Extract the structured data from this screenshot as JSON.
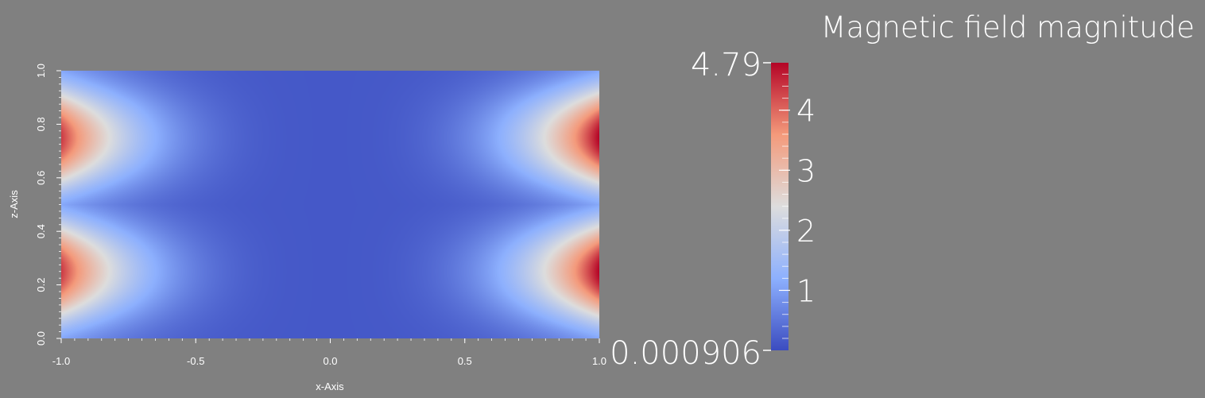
{
  "chart_data": {
    "type": "heatmap",
    "title": "",
    "xlabel": "x-Axis",
    "ylabel": "z-Axis",
    "xlim": [
      -1.0,
      1.0
    ],
    "ylim": [
      0.0,
      1.0
    ],
    "x_ticks": [
      "-1.0",
      "-0.5",
      "0.0",
      "0.5",
      "1.0"
    ],
    "x_tick_values": [
      -1.0,
      -0.5,
      0.0,
      0.5,
      1.0
    ],
    "y_ticks": [
      "0.0",
      "0.2",
      "0.4",
      "0.6",
      "0.8",
      "1.0"
    ],
    "y_tick_values": [
      0.0,
      0.2,
      0.4,
      0.6,
      0.8,
      1.0
    ],
    "colorbar": {
      "title": "Magnetic field magnitude",
      "min_label": "0.000906",
      "max_label": "4.79",
      "min": 0.000906,
      "max": 4.79,
      "tick_labels": [
        "1",
        "2",
        "3",
        "4"
      ],
      "tick_values": [
        1,
        2,
        3,
        4
      ],
      "colormap": "cool-to-warm",
      "colormap_stops": [
        "#3b4cc0",
        "#dddddd",
        "#b40426"
      ]
    },
    "field_description_hotspots": [
      {
        "x": -1.0,
        "z": 0.75,
        "value": 4.3
      },
      {
        "x": -1.0,
        "z": 0.25,
        "value": 4.3
      },
      {
        "x": 1.0,
        "z": 0.75,
        "value": 4.79
      },
      {
        "x": 1.0,
        "z": 0.25,
        "value": 4.79
      }
    ]
  }
}
